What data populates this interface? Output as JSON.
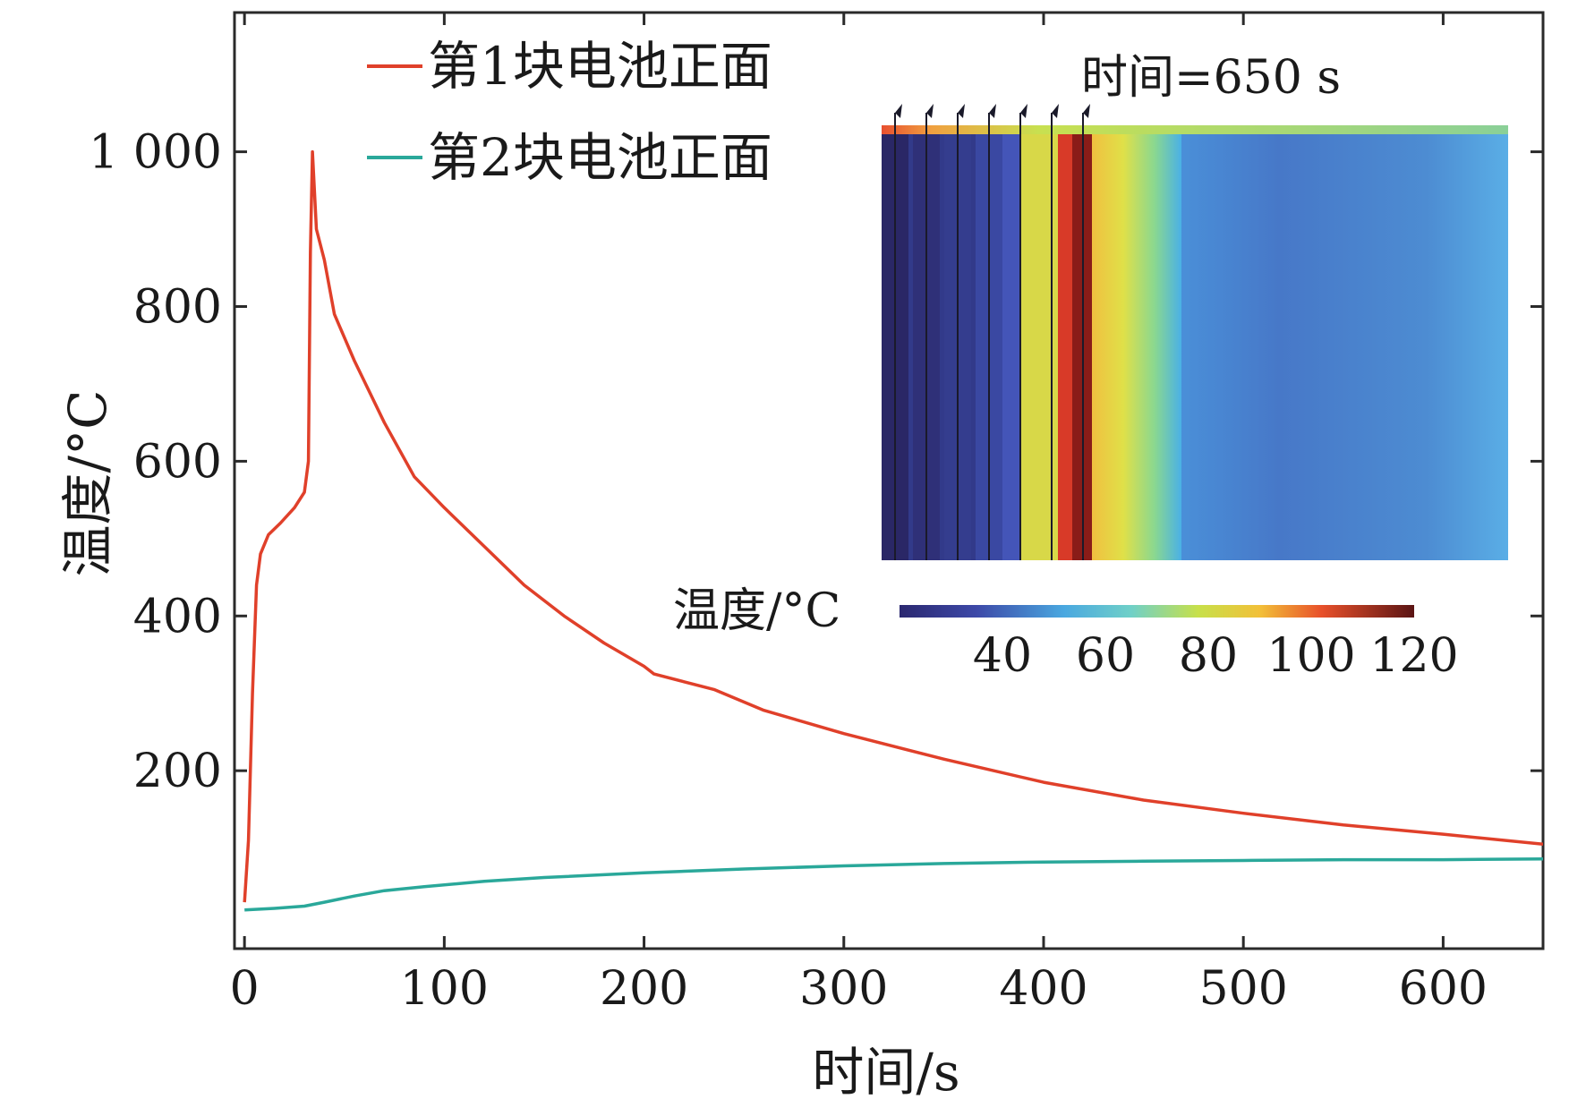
{
  "chart_data": {
    "type": "line",
    "xlabel": "时间/s",
    "ylabel": "温度/°C",
    "xlim": [
      -5,
      650
    ],
    "ylim": [
      -30,
      1180
    ],
    "x_ticks": [
      {
        "value": 0,
        "label": "0"
      },
      {
        "value": 100,
        "label": "100"
      },
      {
        "value": 200,
        "label": "200"
      },
      {
        "value": 300,
        "label": "300"
      },
      {
        "value": 400,
        "label": "400"
      },
      {
        "value": 500,
        "label": "500"
      },
      {
        "value": 600,
        "label": "600"
      }
    ],
    "y_ticks": [
      {
        "value": 200,
        "label": "200"
      },
      {
        "value": 400,
        "label": "400"
      },
      {
        "value": 600,
        "label": "600"
      },
      {
        "value": 800,
        "label": "800"
      },
      {
        "value": 1000,
        "label": "1 000"
      }
    ],
    "legend_position": "top-left",
    "series": [
      {
        "name": "第1块电池正面",
        "color": "#e0402a",
        "x": [
          0,
          2,
          4,
          6,
          8,
          12,
          18,
          25,
          30,
          32,
          33,
          34,
          36,
          40,
          45,
          55,
          70,
          85,
          100,
          120,
          140,
          160,
          180,
          200,
          205,
          220,
          235,
          260,
          300,
          350,
          400,
          450,
          500,
          550,
          600,
          650
        ],
        "values": [
          30,
          110,
          300,
          440,
          480,
          505,
          520,
          540,
          560,
          600,
          870,
          1000,
          900,
          860,
          790,
          730,
          650,
          580,
          540,
          490,
          440,
          400,
          365,
          335,
          325,
          315,
          305,
          278,
          248,
          215,
          185,
          162,
          145,
          130,
          118,
          105
        ]
      },
      {
        "name": "第2块电池正面",
        "color": "#2aa89a",
        "x": [
          0,
          15,
          30,
          40,
          55,
          70,
          90,
          120,
          150,
          200,
          250,
          300,
          350,
          400,
          450,
          500,
          550,
          600,
          650
        ],
        "values": [
          20,
          22,
          25,
          30,
          38,
          45,
          50,
          57,
          62,
          68,
          73,
          77,
          80,
          82,
          83,
          84,
          85,
          85,
          86
        ]
      }
    ],
    "inset": {
      "title": "时间=650 s",
      "colorbar_label": "温度/°C",
      "colorbar_ticks": [
        "40",
        "60",
        "80",
        "100",
        "120"
      ],
      "colorbar_range": [
        20,
        120
      ],
      "colorbar_tick_values": [
        40,
        60,
        80,
        100,
        120
      ]
    }
  }
}
